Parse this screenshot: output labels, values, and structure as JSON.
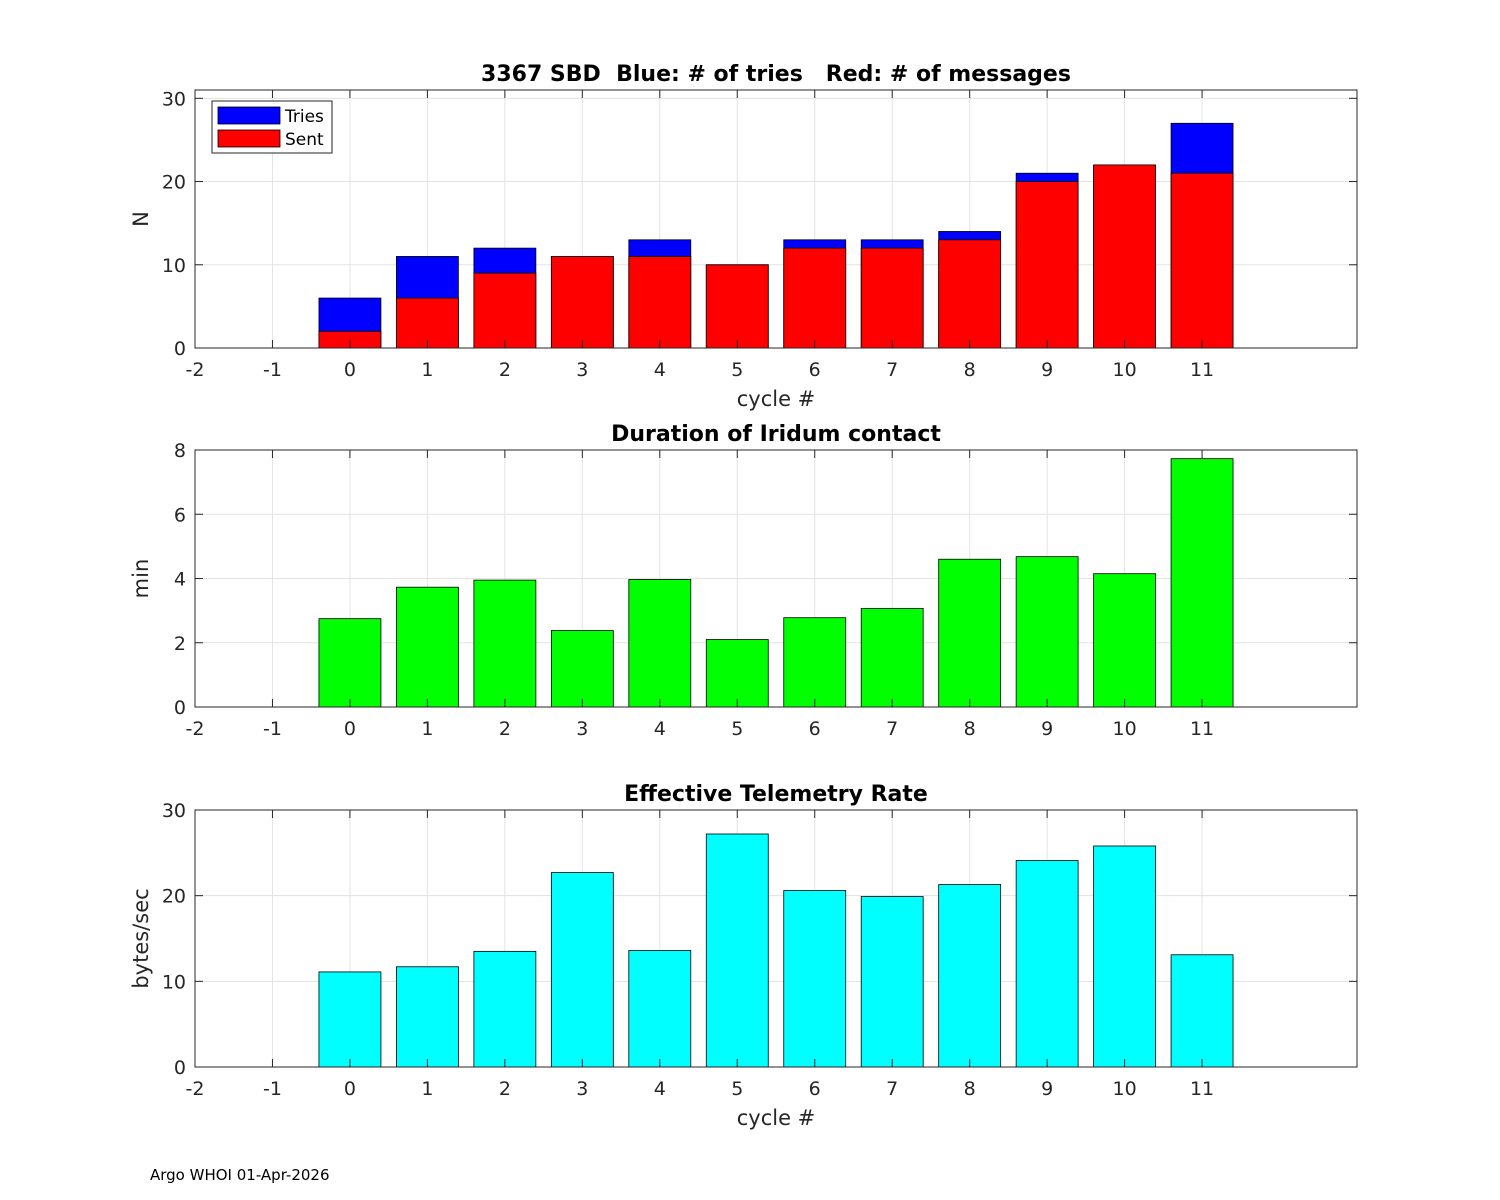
{
  "footer": "Argo WHOI 01-Apr-2026",
  "chart_data": [
    {
      "type": "bar",
      "stacked": false,
      "overlaid": true,
      "title": "3367 SBD  Blue: # of tries   Red: # of messages",
      "xlabel": "cycle #",
      "ylabel": "N",
      "xlim": [
        -2,
        13
      ],
      "ylim": [
        0,
        31
      ],
      "xticks": [
        -2,
        -1,
        0,
        1,
        2,
        3,
        4,
        5,
        6,
        7,
        8,
        9,
        10,
        11
      ],
      "yticks": [
        0,
        10,
        20,
        30
      ],
      "grid": true,
      "legend_position": "top-left",
      "categories": [
        0,
        1,
        2,
        3,
        4,
        5,
        6,
        7,
        8,
        9,
        10,
        11
      ],
      "series": [
        {
          "name": "Tries",
          "color": "#0000ff",
          "values": [
            6,
            11,
            12,
            11,
            13,
            10,
            13,
            13,
            14,
            21,
            22,
            27
          ]
        },
        {
          "name": "Sent",
          "color": "#ff0000",
          "values": [
            2,
            6,
            9,
            11,
            11,
            10,
            12,
            12,
            13,
            20,
            22,
            21
          ]
        }
      ]
    },
    {
      "type": "bar",
      "title": "Duration of Iridum contact",
      "xlabel": "",
      "ylabel": "min",
      "xlim": [
        -2,
        13
      ],
      "ylim": [
        0,
        8
      ],
      "xticks": [
        -2,
        -1,
        0,
        1,
        2,
        3,
        4,
        5,
        6,
        7,
        8,
        9,
        10,
        11
      ],
      "yticks": [
        0,
        2,
        4,
        6,
        8
      ],
      "grid": true,
      "categories": [
        0,
        1,
        2,
        3,
        4,
        5,
        6,
        7,
        8,
        9,
        10,
        11
      ],
      "series": [
        {
          "name": "Duration",
          "color": "#00ff00",
          "values": [
            2.75,
            3.73,
            3.95,
            2.38,
            3.97,
            2.1,
            2.78,
            3.07,
            4.6,
            4.68,
            4.15,
            7.73
          ]
        }
      ]
    },
    {
      "type": "bar",
      "title": "Effective Telemetry Rate",
      "xlabel": "cycle #",
      "ylabel": "bytes/sec",
      "xlim": [
        -2,
        13
      ],
      "ylim": [
        0,
        30
      ],
      "xticks": [
        -2,
        -1,
        0,
        1,
        2,
        3,
        4,
        5,
        6,
        7,
        8,
        9,
        10,
        11
      ],
      "yticks": [
        0,
        10,
        20,
        30
      ],
      "grid": true,
      "categories": [
        0,
        1,
        2,
        3,
        4,
        5,
        6,
        7,
        8,
        9,
        10,
        11
      ],
      "series": [
        {
          "name": "Rate",
          "color": "#00ffff",
          "values": [
            11.1,
            11.7,
            13.5,
            22.7,
            13.6,
            27.2,
            20.6,
            19.9,
            21.3,
            24.1,
            25.8,
            13.1
          ]
        }
      ]
    }
  ]
}
